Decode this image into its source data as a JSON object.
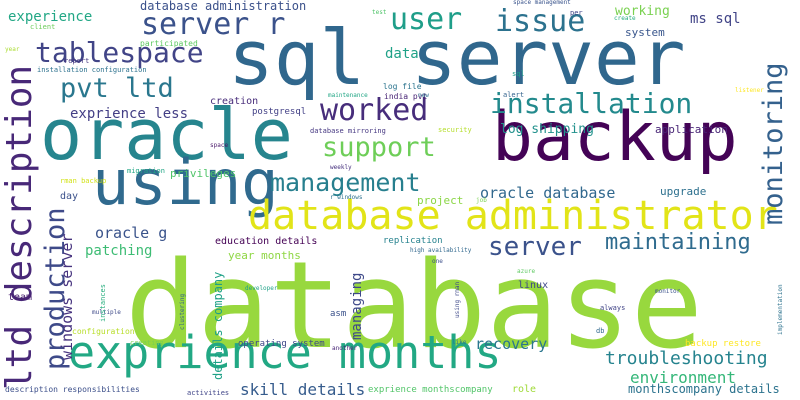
{
  "word_cloud": {
    "words": [
      {
        "text": "database",
        "color": "#98d83e",
        "orientation": "horizontal"
      },
      {
        "text": "sql server",
        "color": "#30678d",
        "orientation": "horizontal"
      },
      {
        "text": "oracle",
        "color": "#26858e",
        "orientation": "horizontal"
      },
      {
        "text": "backup",
        "color": "#440356",
        "orientation": "horizontal"
      },
      {
        "text": "using",
        "color": "#306a8e",
        "orientation": "horizontal"
      },
      {
        "text": "exprience months",
        "color": "#22a884",
        "orientation": "horizontal"
      },
      {
        "text": "database administrator",
        "color": "#e2e418",
        "orientation": "horizontal"
      },
      {
        "text": "ltd description",
        "color": "#482878",
        "orientation": "vertical"
      },
      {
        "text": "production",
        "color": "#3e4a89",
        "orientation": "vertical"
      },
      {
        "text": "server r",
        "color": "#3b528b",
        "orientation": "horizontal"
      },
      {
        "text": "user",
        "color": "#1f9e89",
        "orientation": "horizontal"
      },
      {
        "text": "issue",
        "color": "#2c728e",
        "orientation": "horizontal"
      },
      {
        "text": "monitoring",
        "color": "#34618d",
        "orientation": "vertical"
      },
      {
        "text": "tablespace",
        "color": "#414487",
        "orientation": "horizontal"
      },
      {
        "text": "pvt ltd",
        "color": "#2a778e",
        "orientation": "horizontal"
      },
      {
        "text": "worked",
        "color": "#472d7b",
        "orientation": "horizontal"
      },
      {
        "text": "installation",
        "color": "#238a8d",
        "orientation": "horizontal"
      },
      {
        "text": "support",
        "color": "#6ece58",
        "orientation": "horizontal"
      },
      {
        "text": "management",
        "color": "#277f8e",
        "orientation": "horizontal"
      },
      {
        "text": "server",
        "color": "#3b528b",
        "orientation": "horizontal"
      },
      {
        "text": "maintaining",
        "color": "#2f6b8e",
        "orientation": "horizontal"
      },
      {
        "text": "troubleshooting",
        "color": "#25838e",
        "orientation": "horizontal"
      },
      {
        "text": "environment",
        "color": "#35b779",
        "orientation": "horizontal"
      },
      {
        "text": "windows server",
        "color": "#46327e",
        "orientation": "vertical"
      },
      {
        "text": "managing",
        "color": "#3e4989",
        "orientation": "vertical"
      },
      {
        "text": "skill details",
        "color": "#365c8d",
        "orientation": "horizontal"
      },
      {
        "text": "recovery",
        "color": "#2a768e",
        "orientation": "horizontal"
      },
      {
        "text": "exprience less",
        "color": "#433e85",
        "orientation": "horizontal"
      },
      {
        "text": "oracle database",
        "color": "#31688e",
        "orientation": "horizontal"
      },
      {
        "text": "oracle g",
        "color": "#3a538b",
        "orientation": "horizontal"
      },
      {
        "text": "patching",
        "color": "#3dbc74",
        "orientation": "horizontal"
      },
      {
        "text": "experience",
        "color": "#22a785",
        "orientation": "horizontal"
      },
      {
        "text": "database administration",
        "color": "#3b518b",
        "orientation": "horizontal"
      },
      {
        "text": "working",
        "color": "#7ad151",
        "orientation": "horizontal"
      },
      {
        "text": "ms sql",
        "color": "#414487",
        "orientation": "horizontal"
      },
      {
        "text": "log shipping",
        "color": "#21918c",
        "orientation": "horizontal"
      },
      {
        "text": "application",
        "color": "#482576",
        "orientation": "horizontal"
      },
      {
        "text": "upgrade",
        "color": "#2d708e",
        "orientation": "horizontal"
      },
      {
        "text": "linux",
        "color": "#3f4788",
        "orientation": "horizontal"
      },
      {
        "text": "monthscompany details",
        "color": "#2c738e",
        "orientation": "horizontal"
      },
      {
        "text": "education details",
        "color": "#440154",
        "orientation": "horizontal"
      },
      {
        "text": "details company",
        "color": "#1fa187",
        "orientation": "vertical"
      },
      {
        "text": "year months",
        "color": "#8fd744",
        "orientation": "horizontal"
      },
      {
        "text": "data",
        "color": "#1fa187",
        "orientation": "horizontal"
      },
      {
        "text": "privileges",
        "color": "#50c46a",
        "orientation": "horizontal"
      },
      {
        "text": "system",
        "color": "#39568c",
        "orientation": "horizontal"
      },
      {
        "text": "creation",
        "color": "#472c7a",
        "orientation": "horizontal"
      },
      {
        "text": "postgresql",
        "color": "#424086",
        "orientation": "horizontal"
      },
      {
        "text": "replication",
        "color": "#26828e",
        "orientation": "horizontal"
      },
      {
        "text": "asm",
        "color": "#3b528b",
        "orientation": "horizontal"
      },
      {
        "text": "operating system",
        "color": "#3f4889",
        "orientation": "horizontal"
      },
      {
        "text": "backup restore",
        "color": "#fde725",
        "orientation": "horizontal"
      },
      {
        "text": "team",
        "color": "#481f70",
        "orientation": "horizontal"
      },
      {
        "text": "day",
        "color": "#3b518b",
        "orientation": "horizontal"
      },
      {
        "text": "project",
        "color": "#8bd646",
        "orientation": "horizontal"
      },
      {
        "text": "role",
        "color": "#a0da39",
        "orientation": "horizontal"
      },
      {
        "text": "exprience monthscompany",
        "color": "#52c569",
        "orientation": "horizontal"
      },
      {
        "text": "description responsibilities",
        "color": "#3c4f8a",
        "orientation": "horizontal"
      },
      {
        "text": "log file",
        "color": "#2b748e",
        "orientation": "horizontal"
      },
      {
        "text": "india pvt",
        "color": "#482475",
        "orientation": "horizontal"
      },
      {
        "text": "participated",
        "color": "#5ec962",
        "orientation": "horizontal"
      },
      {
        "text": "installation configuration",
        "color": "#2c718e",
        "orientation": "horizontal"
      },
      {
        "text": "report",
        "color": "#453781",
        "orientation": "horizontal"
      },
      {
        "text": "client",
        "color": "#6ccd5a",
        "orientation": "horizontal"
      },
      {
        "text": "per",
        "color": "#404588",
        "orientation": "horizontal"
      },
      {
        "text": "test",
        "color": "#50c46a",
        "orientation": "horizontal"
      },
      {
        "text": "space management",
        "color": "#3a548c",
        "orientation": "horizontal"
      },
      {
        "text": "create",
        "color": "#26ad81",
        "orientation": "horizontal"
      },
      {
        "text": "sql",
        "color": "#1f9e89",
        "orientation": "horizontal"
      },
      {
        "text": "alert",
        "color": "#33638d",
        "orientation": "horizontal"
      },
      {
        "text": "new",
        "color": "#2c718e",
        "orientation": "horizontal"
      },
      {
        "text": "maintenance",
        "color": "#21a685",
        "orientation": "horizontal"
      },
      {
        "text": "security",
        "color": "#b5de2b",
        "orientation": "horizontal"
      },
      {
        "text": "database mirroring",
        "color": "#453781",
        "orientation": "horizontal"
      },
      {
        "text": "weekly",
        "color": "#46307e",
        "orientation": "horizontal"
      },
      {
        "text": "r windows",
        "color": "#2d708e",
        "orientation": "horizontal"
      },
      {
        "text": "job",
        "color": "#7ad151",
        "orientation": "horizontal"
      },
      {
        "text": "high availability",
        "color": "#31688e",
        "orientation": "horizontal"
      },
      {
        "text": "one",
        "color": "#3c4f8a",
        "orientation": "horizontal"
      },
      {
        "text": "migration",
        "color": "#21a685",
        "orientation": "horizontal"
      },
      {
        "text": "rman backup",
        "color": "#d2e21b",
        "orientation": "horizontal"
      },
      {
        "text": "space",
        "color": "#481668",
        "orientation": "horizontal"
      },
      {
        "text": "using rman",
        "color": "#3e4989",
        "orientation": "vertical"
      },
      {
        "text": "developer",
        "color": "#1fa187",
        "orientation": "horizontal"
      },
      {
        "text": "azure",
        "color": "#5ec962",
        "orientation": "horizontal"
      },
      {
        "text": "monitor",
        "color": "#3b528b",
        "orientation": "horizontal"
      },
      {
        "text": "always",
        "color": "#414487",
        "orientation": "horizontal"
      },
      {
        "text": "db",
        "color": "#31688e",
        "orientation": "horizontal"
      },
      {
        "text": "like",
        "color": "#2a788e",
        "orientation": "horizontal"
      },
      {
        "text": "another",
        "color": "#482677",
        "orientation": "horizontal"
      },
      {
        "text": "creating",
        "color": "#7ad151",
        "orientation": "horizontal"
      },
      {
        "text": "configuration",
        "color": "#b8de29",
        "orientation": "horizontal"
      },
      {
        "text": "multiple",
        "color": "#3e4a89",
        "orientation": "horizontal"
      },
      {
        "text": "clustering",
        "color": "#355f8d",
        "orientation": "vertical"
      },
      {
        "text": "instances",
        "color": "#29af7f",
        "orientation": "vertical"
      },
      {
        "text": "implementation",
        "color": "#2c728e",
        "orientation": "vertical"
      },
      {
        "text": "listener",
        "color": "#fde725",
        "orientation": "horizontal"
      },
      {
        "text": "activities",
        "color": "#404588",
        "orientation": "horizontal"
      },
      {
        "text": "year",
        "color": "#aadc32",
        "orientation": "horizontal"
      }
    ]
  }
}
